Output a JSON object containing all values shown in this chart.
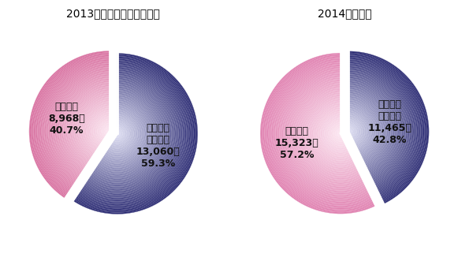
{
  "chart1_title": "2013年度業績（前回調査）",
  "chart2_title": "2014年度業績",
  "chart1_slices": [
    59.3,
    40.7
  ],
  "chart2_slices": [
    42.8,
    57.2
  ],
  "chart1_label_blue": "【減収・\n横ばい】\n13,060社\n59.3%",
  "chart1_label_pink": "【増収】\n8,968社\n40.7%",
  "chart2_label_blue": "【減収・\n横ばい】\n11,465社\n42.8%",
  "chart2_label_pink": "【増収】\n15,323社\n57.2%",
  "blue_outer": "#2a2a72",
  "blue_inner": "#e0e0f4",
  "pink_outer1": "#d870a0",
  "pink_inner1": "#fce8f2",
  "pink_outer2": "#e080b0",
  "pink_inner2": "#fce8f2",
  "bg_color": "#ffffff",
  "explode": 0.05,
  "n_rings": 60,
  "title_fontsize": 11,
  "label_fontsize": 9,
  "startangle": 90
}
